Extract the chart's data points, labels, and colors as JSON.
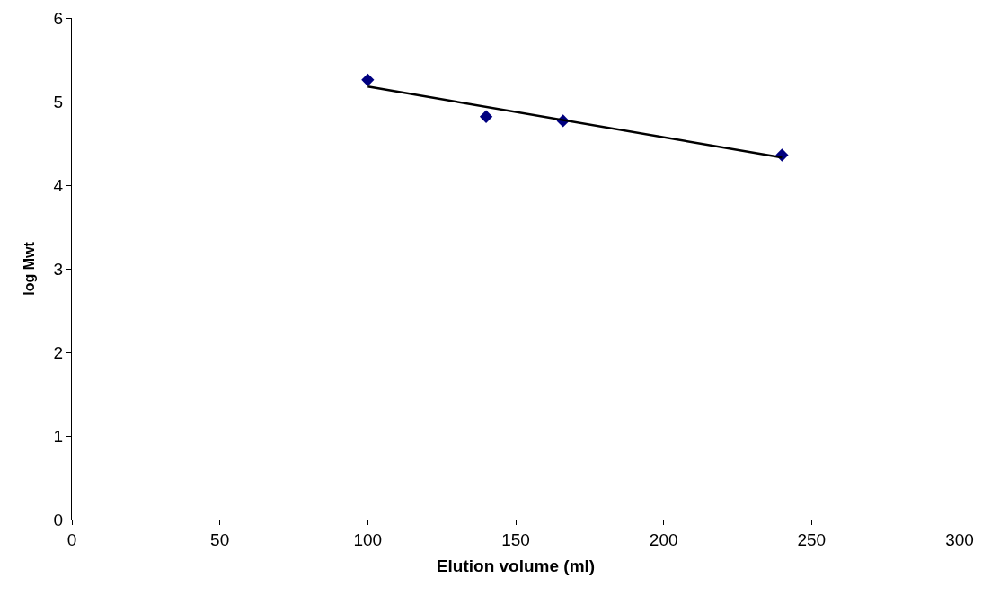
{
  "chart_data": {
    "type": "scatter",
    "xlabel": "Elution volume (ml)",
    "ylabel": "log Mwt",
    "x": [
      100,
      140,
      166,
      240
    ],
    "series": [
      {
        "color": "#000080",
        "values": [
          5.26,
          4.82,
          4.77,
          4.36
        ],
        "marker": "diamond"
      },
      {
        "type": "line",
        "color": "#000000",
        "x": [
          100,
          240
        ],
        "values": [
          5.18,
          4.33
        ],
        "marker": "none",
        "line_style": "solid"
      }
    ],
    "xlim": [
      0,
      300
    ],
    "xticks": [
      0,
      50,
      100,
      150,
      200,
      250,
      300
    ],
    "ylim": [
      0,
      6
    ],
    "yticks": [
      0,
      1,
      2,
      3,
      4,
      5,
      6
    ],
    "grid": false
  }
}
